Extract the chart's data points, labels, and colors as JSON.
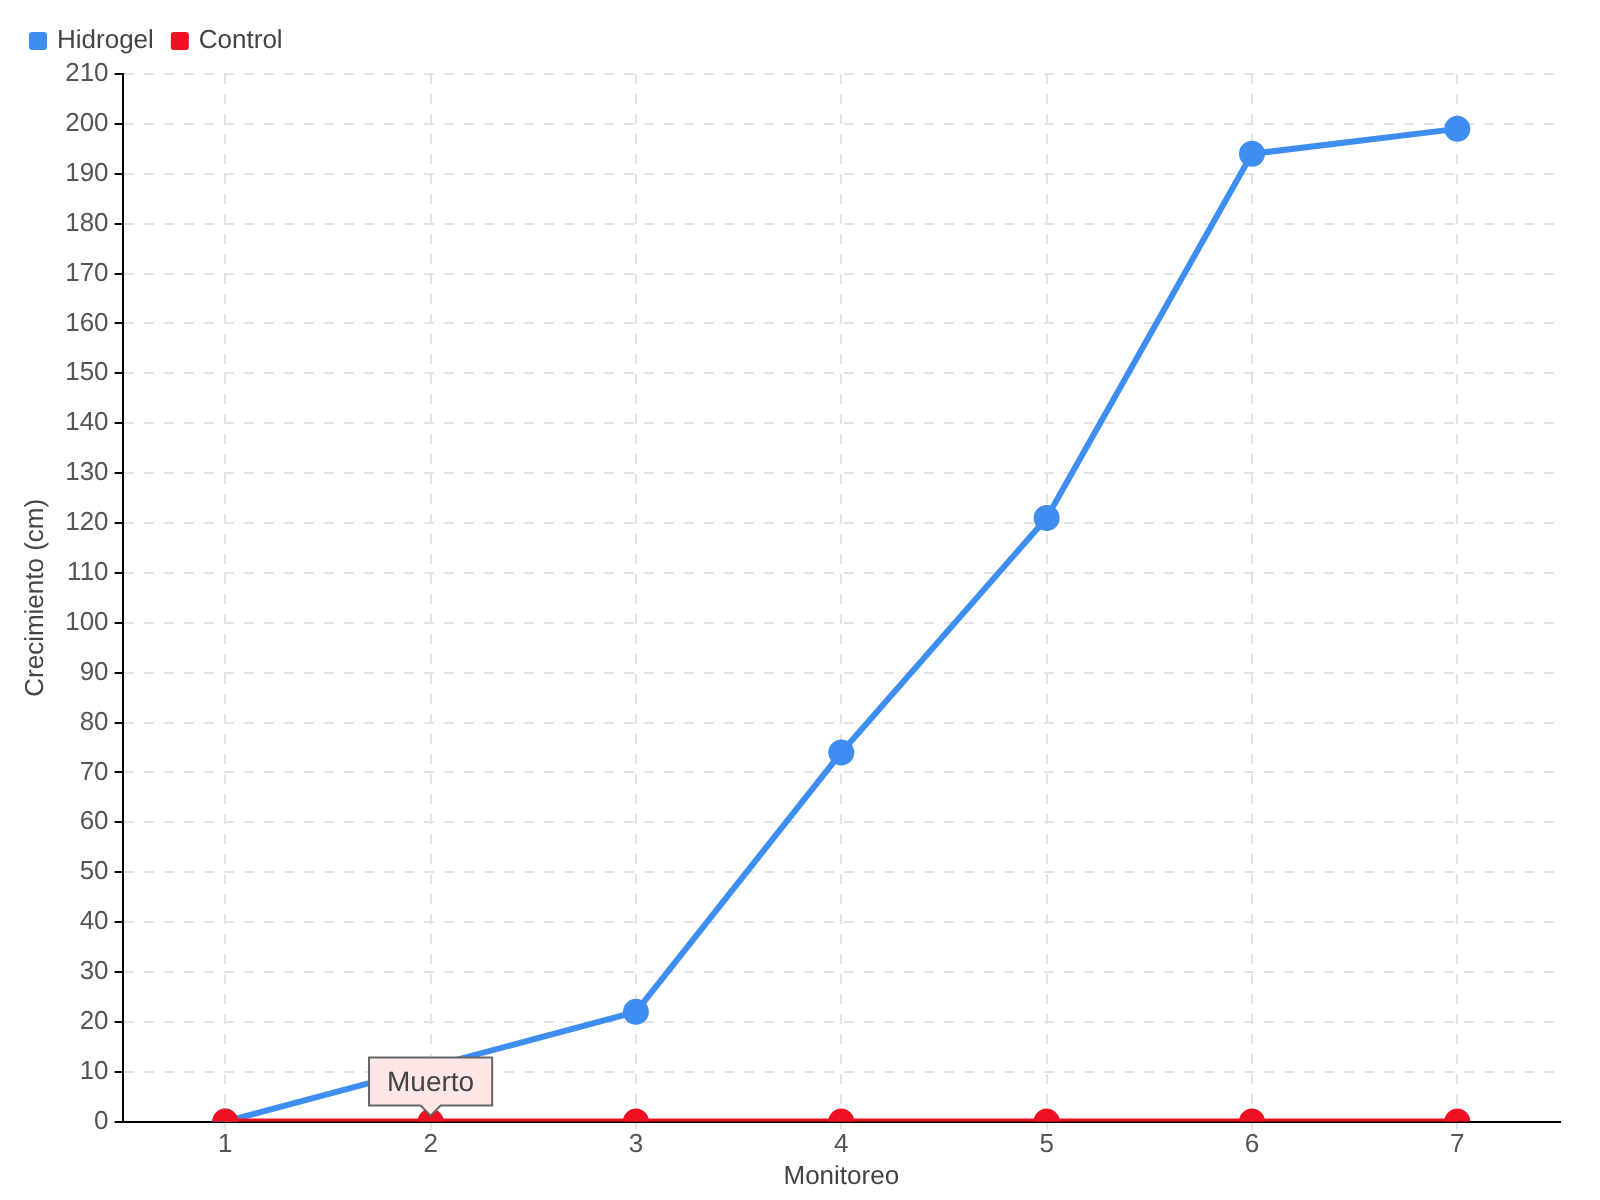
{
  "chart_data": {
    "type": "line",
    "xlabel": "Monitoreo",
    "ylabel": "Crecimiento (cm)",
    "categories": [
      "1",
      "2",
      "3",
      "4",
      "5",
      "6",
      "7"
    ],
    "series": [
      {
        "name": "Hidrogel",
        "color": "#3d8ef0",
        "values": [
          0,
          null,
          22,
          74,
          121,
          194,
          199
        ]
      },
      {
        "name": "Control",
        "color": "#ee1122",
        "values": [
          0,
          0,
          0,
          0,
          0,
          0,
          0
        ]
      }
    ],
    "ylim": [
      0,
      210
    ],
    "yticks": [
      0,
      10,
      20,
      30,
      40,
      50,
      60,
      70,
      80,
      90,
      100,
      110,
      120,
      130,
      140,
      150,
      160,
      170,
      180,
      190,
      200,
      210
    ],
    "grid": true,
    "legend": "top left",
    "marker": "circle",
    "line_style": "solid",
    "annotations": [
      {
        "text": "Muerto",
        "x": "2",
        "y": 0
      }
    ]
  }
}
